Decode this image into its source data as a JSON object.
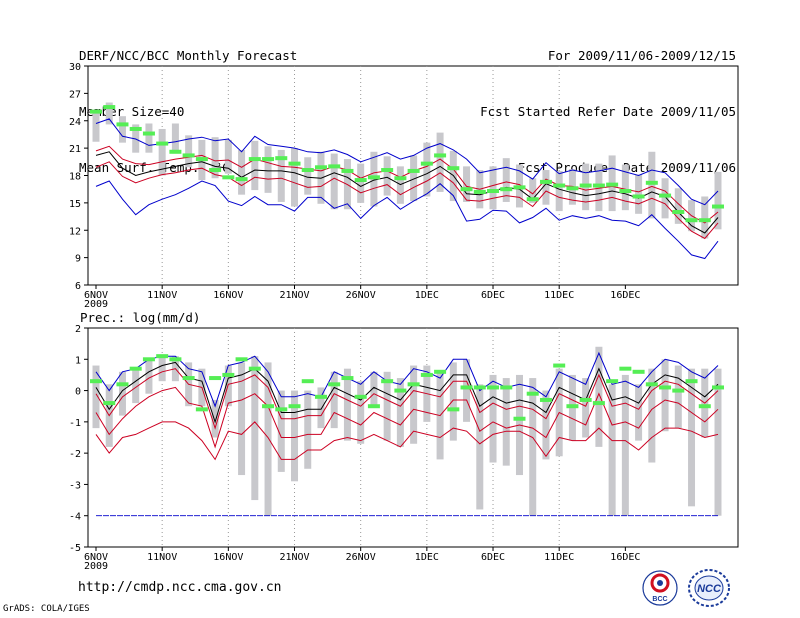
{
  "header": {
    "title": "DERF/NCC/BCC Monthly Forecast",
    "member_size": "Member Size=40",
    "variable": "Mean Surf. Temp.: °C",
    "forecast_period": "For 2009/11/06-2009/12/15",
    "started_date": "Fcst Started Refer Date 2009/11/05",
    "produced_date": "Fcst Produced Date 2009/11/06"
  },
  "footer": {
    "url": "http://cmdp.ncc.cma.gov.cn",
    "credit": "GrADS: COLA/IGES",
    "logo_bcc": "BCC",
    "logo_ncc": "NCC"
  },
  "colors": {
    "envelope": "#0000cc",
    "spread": "#cc0022",
    "mean": "#000000",
    "box": "#c8c8cc",
    "climatology": "#55ee55",
    "grid": "#999999"
  },
  "chart_data": [
    {
      "type": "line",
      "title": "Mean Surf. Temp.: °C",
      "x_tick_labels": [
        "6NOV",
        "11NOV",
        "16NOV",
        "21NOV",
        "26NOV",
        "1DEC",
        "6DEC",
        "11DEC",
        "16DEC"
      ],
      "x_year_label": "2009",
      "ylim": [
        6,
        30
      ],
      "yticks": [
        6,
        9,
        12,
        15,
        18,
        21,
        24,
        27,
        30
      ],
      "series": [
        {
          "name": "max",
          "color": "blue",
          "values": [
            23.7,
            24.2,
            22.3,
            22.0,
            21.3,
            21.5,
            21.7,
            22.0,
            22.2,
            21.8,
            22.0,
            20.6,
            22.3,
            21.4,
            21.2,
            21.0,
            20.6,
            20.5,
            20.8,
            20.3,
            19.5,
            20.0,
            20.5,
            19.8,
            20.2,
            21.0,
            21.5,
            20.8,
            19.8,
            18.3,
            18.6,
            18.9,
            18.5,
            17.6,
            19.4,
            18.2,
            18.6,
            18.3,
            18.5,
            18.8,
            18.4,
            18.0,
            18.6,
            18.3,
            16.9,
            15.4,
            14.8,
            16.3
          ]
        },
        {
          "name": "upper",
          "color": "red",
          "values": [
            20.7,
            21.2,
            19.8,
            19.3,
            19.2,
            19.5,
            19.8,
            20.0,
            20.2,
            19.6,
            19.7,
            18.9,
            19.8,
            19.4,
            19.0,
            18.9,
            18.7,
            18.5,
            19.0,
            18.6,
            17.7,
            18.3,
            18.5,
            17.8,
            18.5,
            19.0,
            19.8,
            18.7,
            16.8,
            16.5,
            16.9,
            17.3,
            17.0,
            16.0,
            17.6,
            16.9,
            16.8,
            16.4,
            16.6,
            16.8,
            16.5,
            16.2,
            16.8,
            16.3,
            14.9,
            13.6,
            12.8,
            14.0
          ]
        },
        {
          "name": "mean",
          "color": "black",
          "values": [
            20.2,
            20.6,
            18.8,
            18.0,
            18.4,
            18.7,
            19.0,
            19.3,
            19.5,
            19.0,
            18.8,
            17.8,
            18.6,
            18.5,
            18.5,
            18.3,
            17.8,
            17.7,
            18.3,
            17.8,
            16.8,
            17.5,
            17.8,
            17.0,
            17.6,
            18.2,
            19.0,
            18.0,
            16.0,
            15.9,
            16.3,
            16.7,
            16.5,
            15.4,
            17.1,
            16.5,
            16.1,
            15.8,
            16.0,
            16.3,
            16.0,
            15.5,
            16.2,
            15.7,
            14.0,
            12.5,
            11.7,
            13.4
          ]
        },
        {
          "name": "lower",
          "color": "red",
          "values": [
            18.9,
            19.5,
            17.9,
            17.2,
            17.7,
            18.1,
            18.3,
            18.6,
            18.8,
            18.1,
            17.8,
            16.9,
            17.8,
            17.6,
            17.7,
            17.2,
            16.7,
            16.8,
            17.7,
            17.0,
            16.1,
            16.6,
            17.0,
            15.9,
            16.7,
            17.4,
            18.3,
            17.2,
            15.3,
            15.2,
            15.5,
            15.8,
            15.6,
            14.6,
            16.3,
            15.6,
            15.3,
            15.1,
            15.3,
            15.6,
            15.2,
            14.9,
            15.5,
            14.9,
            13.3,
            11.9,
            11.1,
            12.8
          ]
        },
        {
          "name": "min",
          "color": "blue",
          "values": [
            16.8,
            17.4,
            15.4,
            13.7,
            14.8,
            15.4,
            15.9,
            16.6,
            17.4,
            16.9,
            15.2,
            14.7,
            15.7,
            14.8,
            14.8,
            14.1,
            15.6,
            15.6,
            14.4,
            14.9,
            13.3,
            14.7,
            15.6,
            14.3,
            15.2,
            16.0,
            17.1,
            15.8,
            13.0,
            13.2,
            14.2,
            14.1,
            12.8,
            13.4,
            14.4,
            13.1,
            13.6,
            13.3,
            13.6,
            13.1,
            13.0,
            12.5,
            13.7,
            12.2,
            10.8,
            9.3,
            8.9,
            10.8
          ]
        }
      ],
      "boxes": {
        "top": [
          25.0,
          26.0,
          24.5,
          23.6,
          23.7,
          23.1,
          23.7,
          22.4,
          21.9,
          22.2,
          21.9,
          20.8,
          21.8,
          21.2,
          20.8,
          21.0,
          20.0,
          20.6,
          20.4,
          19.8,
          19.3,
          20.6,
          20.1,
          19.0,
          20.2,
          21.6,
          22.7,
          20.7,
          19.0,
          18.6,
          19.0,
          19.9,
          19.2,
          17.7,
          18.6,
          18.5,
          18.7,
          19.3,
          19.3,
          20.2,
          19.2,
          18.1,
          20.6,
          17.7,
          16.6,
          15.3,
          15.7,
          18.4
        ],
        "bottom": [
          21.7,
          23.6,
          21.6,
          20.5,
          20.5,
          18.0,
          20.4,
          18.9,
          17.5,
          17.7,
          18.2,
          15.9,
          16.4,
          16.1,
          15.1,
          14.6,
          15.9,
          14.9,
          14.3,
          14.3,
          15.0,
          14.6,
          15.8,
          14.9,
          15.2,
          15.7,
          16.2,
          15.2,
          15.1,
          14.4,
          14.3,
          15.1,
          14.5,
          15.0,
          14.8,
          14.1,
          14.8,
          14.2,
          14.1,
          14.1,
          14.2,
          13.8,
          13.3,
          13.3,
          12.7,
          11.9,
          11.1,
          12.1
        ]
      },
      "climatology": [
        25.0,
        25.5,
        23.6,
        23.1,
        22.6,
        21.5,
        20.6,
        20.2,
        19.8,
        18.6,
        17.8,
        17.6,
        19.8,
        19.8,
        19.9,
        19.3,
        18.6,
        18.9,
        19.0,
        18.5,
        17.5,
        17.8,
        18.6,
        17.7,
        18.5,
        19.3,
        20.2,
        18.8,
        16.5,
        16.2,
        16.3,
        16.5,
        16.7,
        15.4,
        17.3,
        16.9,
        16.6,
        16.9,
        16.9,
        17.0,
        16.3,
        15.7,
        17.2,
        15.8,
        14.0,
        13.1,
        13.1,
        14.6
      ]
    },
    {
      "type": "line",
      "title": "Prec.: log(mm/d)",
      "x_tick_labels": [
        "6NOV",
        "11NOV",
        "16NOV",
        "21NOV",
        "26NOV",
        "1DEC",
        "6DEC",
        "11DEC",
        "16DEC"
      ],
      "x_year_label": "2009",
      "ylim": [
        -5,
        2
      ],
      "yticks": [
        -5,
        -4,
        -3,
        -2,
        -1,
        0,
        1,
        2
      ],
      "series": [
        {
          "name": "max",
          "color": "blue",
          "values": [
            0.6,
            0.0,
            0.6,
            0.7,
            1.0,
            1.1,
            1.1,
            0.7,
            0.6,
            -0.5,
            0.8,
            0.9,
            1.1,
            0.6,
            -0.2,
            -0.2,
            -0.1,
            -0.2,
            0.6,
            0.4,
            0.2,
            0.6,
            0.3,
            0.2,
            0.7,
            0.6,
            0.4,
            1.0,
            1.0,
            0.0,
            0.3,
            0.1,
            0.2,
            0.1,
            -0.2,
            0.6,
            0.4,
            0.2,
            1.2,
            0.2,
            0.3,
            0.1,
            0.6,
            1.0,
            0.9,
            0.6,
            0.4,
            0.8
          ]
        },
        {
          "name": "upper",
          "color": "red",
          "values": [
            -0.1,
            -0.8,
            -0.2,
            0.1,
            0.4,
            0.6,
            0.7,
            0.2,
            0.1,
            -1.2,
            0.2,
            0.3,
            0.5,
            0.1,
            -0.9,
            -0.9,
            -0.8,
            -0.8,
            -0.1,
            -0.3,
            -0.5,
            -0.1,
            -0.3,
            -0.5,
            0.0,
            -0.1,
            -0.2,
            0.3,
            0.3,
            -0.7,
            -0.4,
            -0.6,
            -0.5,
            -0.6,
            -0.9,
            -0.1,
            -0.3,
            -0.5,
            0.5,
            -0.5,
            -0.4,
            -0.6,
            0.0,
            0.3,
            0.2,
            -0.1,
            -0.4,
            0.0
          ]
        },
        {
          "name": "mean",
          "color": "black",
          "values": [
            0.1,
            -0.6,
            0.0,
            0.3,
            0.6,
            0.8,
            0.9,
            0.4,
            0.3,
            -1.0,
            0.4,
            0.5,
            0.7,
            0.3,
            -0.7,
            -0.7,
            -0.6,
            -0.6,
            0.1,
            -0.1,
            -0.3,
            0.1,
            -0.1,
            -0.3,
            0.2,
            0.1,
            0.0,
            0.5,
            0.5,
            -0.5,
            -0.2,
            -0.4,
            -0.3,
            -0.4,
            -0.7,
            0.1,
            -0.1,
            -0.3,
            0.7,
            -0.3,
            -0.2,
            -0.4,
            0.2,
            0.5,
            0.4,
            0.1,
            -0.2,
            0.2
          ]
        },
        {
          "name": "lower",
          "color": "red",
          "values": [
            -0.7,
            -1.4,
            -0.9,
            -0.5,
            -0.2,
            0.0,
            0.1,
            -0.4,
            -0.5,
            -1.8,
            -0.4,
            -0.3,
            -0.1,
            -0.5,
            -1.5,
            -1.5,
            -1.4,
            -1.4,
            -0.7,
            -0.9,
            -1.1,
            -0.7,
            -0.9,
            -1.1,
            -0.6,
            -0.7,
            -0.8,
            -0.3,
            -0.3,
            -1.3,
            -1.0,
            -1.2,
            -1.1,
            -1.2,
            -1.5,
            -0.7,
            -0.9,
            -1.1,
            -0.1,
            -1.1,
            -1.0,
            -1.2,
            -0.6,
            -0.3,
            -0.4,
            -0.7,
            -1.0,
            -0.6
          ]
        },
        {
          "name": "min",
          "color": "red",
          "values": [
            -1.4,
            -2.0,
            -1.5,
            -1.4,
            -1.2,
            -1.0,
            -1.0,
            -1.2,
            -1.6,
            -2.2,
            -1.3,
            -1.4,
            -1.0,
            -1.5,
            -2.2,
            -2.2,
            -1.9,
            -1.9,
            -1.6,
            -1.5,
            -1.6,
            -1.4,
            -1.6,
            -1.8,
            -1.3,
            -1.4,
            -1.5,
            -1.2,
            -1.3,
            -1.7,
            -1.4,
            -1.3,
            -1.3,
            -1.5,
            -2.1,
            -1.5,
            -1.6,
            -1.6,
            -1.2,
            -1.6,
            -1.6,
            -1.9,
            -1.5,
            -1.2,
            -1.2,
            -1.3,
            -1.5,
            -1.4
          ]
        },
        {
          "name": "floor",
          "color": "blue",
          "values": [
            -4,
            -4,
            -4,
            -4,
            -4,
            -4,
            -4,
            -4,
            -4,
            -4,
            -4,
            -4,
            -4,
            -4,
            -4,
            -4,
            -4,
            -4,
            -4,
            -4,
            -4,
            -4,
            -4,
            -4,
            -4,
            -4,
            -4,
            -4,
            -4,
            -4,
            -4,
            -4,
            -4,
            -4,
            -4,
            -4,
            -4,
            -4,
            -4,
            -4,
            -4,
            -4,
            -4,
            -4,
            -4,
            -4,
            -4,
            -4
          ]
        }
      ],
      "boxes": {
        "top": [
          0.8,
          0.2,
          0.6,
          0.7,
          1.0,
          1.1,
          1.1,
          0.9,
          0.7,
          -0.3,
          0.8,
          0.9,
          1.1,
          0.9,
          0.0,
          0.0,
          0.0,
          0.1,
          0.6,
          0.7,
          0.3,
          0.6,
          0.6,
          0.4,
          0.8,
          0.8,
          0.6,
          0.9,
          1.0,
          0.2,
          0.5,
          0.4,
          0.5,
          0.4,
          0.0,
          0.7,
          0.5,
          0.4,
          1.4,
          0.2,
          0.5,
          0.2,
          0.7,
          1.0,
          0.8,
          0.7,
          0.7,
          0.7
        ],
        "bottom": [
          -1.2,
          -1.8,
          -0.8,
          -0.4,
          -0.1,
          0.3,
          0.3,
          -0.5,
          -0.5,
          -1.5,
          -0.5,
          -2.7,
          -3.5,
          -4.0,
          -2.6,
          -2.9,
          -2.5,
          -1.2,
          -1.2,
          -1.6,
          -1.7,
          -0.5,
          -1.6,
          -1.8,
          -1.7,
          -1.0,
          -2.2,
          -1.6,
          -1.0,
          -3.8,
          -2.3,
          -2.4,
          -2.7,
          -4.0,
          -2.2,
          -2.1,
          -1.6,
          -1.5,
          -1.8,
          -4.0,
          -4.0,
          -1.6,
          -2.3,
          -1.3,
          -1.2,
          -3.7,
          -1.5,
          -4.0
        ]
      },
      "climatology": [
        0.3,
        -0.4,
        0.2,
        0.7,
        1.0,
        1.1,
        1.0,
        0.4,
        -0.6,
        0.4,
        0.5,
        1.0,
        0.7,
        -0.5,
        -0.6,
        -0.5,
        0.3,
        -0.2,
        0.2,
        0.4,
        -0.2,
        -0.5,
        0.3,
        0.0,
        0.2,
        0.5,
        0.6,
        -0.6,
        0.1,
        0.1,
        0.1,
        0.1,
        -0.9,
        -0.1,
        -0.3,
        0.8,
        -0.5,
        -0.3,
        -0.4,
        0.3,
        0.7,
        0.6,
        0.2,
        0.1,
        0.0,
        0.3,
        -0.5,
        0.1
      ]
    }
  ]
}
